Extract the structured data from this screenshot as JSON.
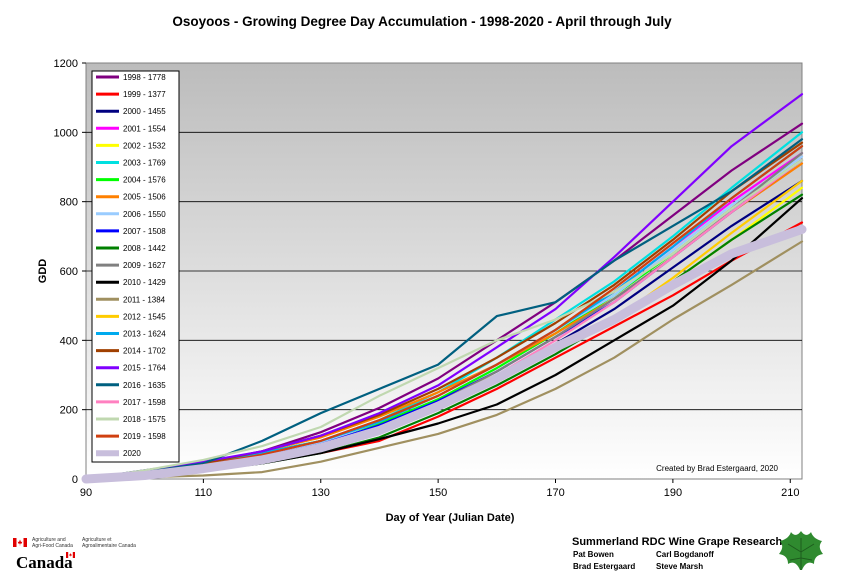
{
  "chart_data": {
    "type": "line",
    "title": "Osoyoos - Growing Degree Day Accumulation - 1998-2020 - April through July",
    "xlabel": "Day of Year (Julian Date)",
    "ylabel": "GDD",
    "xlim": [
      90,
      212
    ],
    "ylim": [
      0,
      1200
    ],
    "x_ticks": [
      "90",
      "110",
      "130",
      "150",
      "170",
      "190",
      "210"
    ],
    "y_ticks": [
      "0",
      "200",
      "400",
      "600",
      "800",
      "1000",
      "1200"
    ],
    "grid": "horizontal",
    "legend_position": "top-left",
    "annotation": "Created by Brad Estergaard, 2020",
    "series": [
      {
        "name": "1998 - 1778",
        "color": "#800080",
        "x": [
          90,
          100,
          110,
          120,
          130,
          140,
          150,
          160,
          170,
          180,
          190,
          200,
          212
        ],
        "y": [
          0,
          18,
          45,
          80,
          135,
          205,
          290,
          400,
          510,
          630,
          760,
          890,
          1025
        ]
      },
      {
        "name": "1999 - 1377",
        "color": "#ff0000",
        "x": [
          90,
          100,
          110,
          120,
          130,
          140,
          150,
          160,
          170,
          180,
          190,
          200,
          212
        ],
        "y": [
          0,
          12,
          30,
          50,
          75,
          110,
          180,
          260,
          350,
          440,
          530,
          630,
          740
        ]
      },
      {
        "name": "2000 - 1455",
        "color": "#000080",
        "x": [
          90,
          100,
          110,
          120,
          130,
          140,
          150,
          160,
          170,
          180,
          190,
          200,
          212
        ],
        "y": [
          0,
          20,
          45,
          70,
          100,
          150,
          220,
          300,
          390,
          490,
          610,
          730,
          860
        ]
      },
      {
        "name": "2001 - 1554",
        "color": "#ff00ff",
        "x": [
          90,
          100,
          110,
          120,
          130,
          140,
          150,
          160,
          170,
          180,
          190,
          200,
          212
        ],
        "y": [
          0,
          15,
          40,
          70,
          110,
          170,
          240,
          330,
          430,
          540,
          670,
          800,
          940
        ]
      },
      {
        "name": "2002 - 1532",
        "color": "#ffff00",
        "x": [
          90,
          100,
          110,
          120,
          130,
          140,
          150,
          160,
          170,
          180,
          190,
          200,
          212
        ],
        "y": [
          0,
          15,
          35,
          55,
          85,
          150,
          230,
          300,
          370,
          450,
          570,
          690,
          840
        ]
      },
      {
        "name": "2003 - 1769",
        "color": "#00e0e0",
        "x": [
          90,
          100,
          110,
          120,
          130,
          140,
          150,
          160,
          170,
          180,
          190,
          200,
          212
        ],
        "y": [
          0,
          18,
          40,
          70,
          110,
          170,
          250,
          350,
          460,
          570,
          700,
          840,
          1000
        ]
      },
      {
        "name": "2004 - 1576",
        "color": "#00ff00",
        "x": [
          90,
          100,
          110,
          120,
          130,
          140,
          150,
          160,
          170,
          180,
          190,
          200,
          212
        ],
        "y": [
          0,
          25,
          50,
          75,
          110,
          160,
          230,
          320,
          420,
          530,
          650,
          780,
          920
        ]
      },
      {
        "name": "2005 - 1506",
        "color": "#ff8000",
        "x": [
          90,
          100,
          110,
          120,
          130,
          140,
          150,
          160,
          170,
          180,
          190,
          200,
          212
        ],
        "y": [
          0,
          20,
          45,
          80,
          120,
          180,
          250,
          330,
          420,
          520,
          640,
          770,
          910
        ]
      },
      {
        "name": "2006 - 1550",
        "color": "#99ccff",
        "x": [
          90,
          100,
          110,
          120,
          130,
          140,
          150,
          160,
          170,
          180,
          190,
          200,
          212
        ],
        "y": [
          0,
          15,
          38,
          65,
          105,
          165,
          240,
          330,
          430,
          530,
          660,
          790,
          930
        ]
      },
      {
        "name": "2007 - 1508",
        "color": "#0000ff",
        "x": [
          90,
          100,
          110,
          120,
          130,
          140,
          150,
          160,
          170,
          180,
          190,
          200,
          212
        ],
        "y": [
          0,
          15,
          38,
          65,
          100,
          155,
          225,
          310,
          410,
          510,
          640,
          770,
          920
        ]
      },
      {
        "name": "2008 - 1442",
        "color": "#008000",
        "x": [
          90,
          100,
          110,
          120,
          130,
          140,
          150,
          160,
          170,
          180,
          190,
          200,
          212
        ],
        "y": [
          0,
          10,
          25,
          45,
          75,
          120,
          190,
          270,
          360,
          460,
          570,
          690,
          820
        ]
      },
      {
        "name": "2009 - 1627",
        "color": "#808080",
        "x": [
          90,
          100,
          110,
          120,
          130,
          140,
          150,
          160,
          170,
          180,
          190,
          200,
          212
        ],
        "y": [
          0,
          15,
          35,
          60,
          95,
          150,
          220,
          310,
          410,
          520,
          640,
          780,
          940
        ]
      },
      {
        "name": "2010 - 1429",
        "color": "#000000",
        "x": [
          90,
          100,
          110,
          120,
          130,
          140,
          150,
          160,
          170,
          180,
          190,
          200,
          212
        ],
        "y": [
          0,
          10,
          25,
          45,
          75,
          115,
          160,
          215,
          300,
          400,
          500,
          630,
          810
        ]
      },
      {
        "name": "2011 - 1384",
        "color": "#a09060",
        "x": [
          90,
          100,
          110,
          120,
          130,
          140,
          150,
          160,
          170,
          180,
          190,
          200,
          212
        ],
        "y": [
          0,
          5,
          10,
          20,
          50,
          90,
          130,
          185,
          260,
          350,
          460,
          560,
          685
        ]
      },
      {
        "name": "2012 - 1545",
        "color": "#ffcc00",
        "x": [
          90,
          100,
          110,
          120,
          130,
          140,
          150,
          160,
          170,
          180,
          190,
          200,
          212
        ],
        "y": [
          0,
          15,
          35,
          60,
          95,
          150,
          220,
          300,
          380,
          460,
          580,
          710,
          860
        ]
      },
      {
        "name": "2013 - 1624",
        "color": "#00aaee",
        "x": [
          90,
          100,
          110,
          120,
          130,
          140,
          150,
          160,
          170,
          180,
          190,
          200,
          212
        ],
        "y": [
          0,
          20,
          45,
          75,
          110,
          165,
          240,
          330,
          430,
          540,
          670,
          810,
          960
        ]
      },
      {
        "name": "2014 - 1702",
        "color": "#a04000",
        "x": [
          90,
          100,
          110,
          120,
          130,
          140,
          150,
          160,
          170,
          180,
          190,
          200,
          212
        ],
        "y": [
          0,
          20,
          45,
          80,
          125,
          185,
          260,
          350,
          450,
          560,
          690,
          830,
          970
        ]
      },
      {
        "name": "2015 - 1764",
        "color": "#8000ff",
        "x": [
          90,
          100,
          110,
          120,
          130,
          140,
          150,
          160,
          170,
          180,
          190,
          200,
          212
        ],
        "y": [
          0,
          25,
          50,
          80,
          125,
          190,
          270,
          380,
          490,
          640,
          800,
          960,
          1110
        ]
      },
      {
        "name": "2016 - 1635",
        "color": "#006080",
        "x": [
          90,
          100,
          110,
          120,
          130,
          140,
          150,
          160,
          170,
          180,
          190,
          200,
          212
        ],
        "y": [
          0,
          20,
          45,
          110,
          190,
          260,
          330,
          470,
          510,
          630,
          730,
          830,
          980
        ]
      },
      {
        "name": "2017 - 1598",
        "color": "#ff80c0",
        "x": [
          90,
          100,
          110,
          120,
          130,
          140,
          150,
          160,
          170,
          180,
          190,
          200,
          212
        ],
        "y": [
          0,
          10,
          25,
          50,
          85,
          140,
          210,
          300,
          400,
          510,
          640,
          770,
          920
        ]
      },
      {
        "name": "2018 - 1575",
        "color": "#c0d8b0",
        "x": [
          90,
          100,
          110,
          120,
          130,
          140,
          150,
          160,
          170,
          180,
          190,
          200,
          212
        ],
        "y": [
          0,
          25,
          55,
          95,
          150,
          240,
          320,
          400,
          460,
          540,
          650,
          780,
          920
        ]
      },
      {
        "name": "2019 - 1598",
        "color": "#d04010",
        "x": [
          90,
          100,
          110,
          120,
          130,
          140,
          150,
          160,
          170,
          180,
          190,
          200,
          212
        ],
        "y": [
          0,
          15,
          40,
          70,
          110,
          170,
          240,
          330,
          430,
          550,
          680,
          810,
          960
        ]
      },
      {
        "name": "2020",
        "color": "#c8bedc",
        "x": [
          90,
          100,
          110,
          120,
          130,
          140,
          150,
          160,
          170,
          180,
          190,
          200,
          212
        ],
        "y": [
          0,
          10,
          30,
          55,
          90,
          140,
          210,
          290,
          380,
          460,
          560,
          650,
          720
        ]
      }
    ]
  },
  "footer": {
    "agri_en_line1": "Agriculture and",
    "agri_en_line2": "Agri-Food Canada",
    "agri_fr_line1": "Agriculture et",
    "agri_fr_line2": "Agroalimentaire Canada",
    "canada_wordmark": "Canada",
    "research_title": "Summerland RDC Wine Grape Research",
    "credits": [
      "Pat Bowen",
      "Carl Bogdanoff",
      "Brad Estergaard",
      "Steve Marsh"
    ]
  }
}
